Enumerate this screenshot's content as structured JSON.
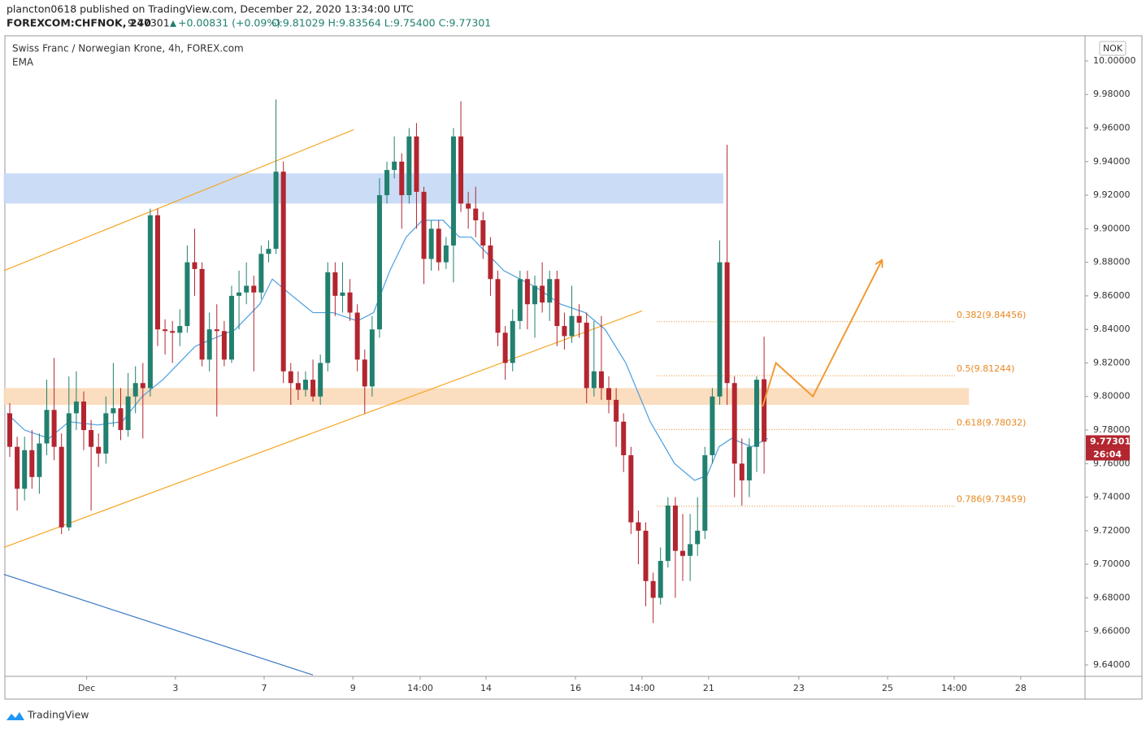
{
  "header": {
    "author_line": "plancton0618 published on TradingView.com, December 22, 2020 13:34:00 UTC",
    "symbol": "FOREXCOM:CHFNOK, 240",
    "last": "9.77301",
    "change": "+0.00831 (+0.09%)",
    "ohlc": "O:9.81029 H:9.83564 L:9.75400 C:9.77301"
  },
  "chart_data": {
    "type": "candlestick",
    "title": "Swiss Franc / Norwegian Krone, 4h, FOREX.com",
    "indicator_label": "EMA",
    "currency": "NOK",
    "up_color": "#22806f",
    "down_color": "#b3252f",
    "open": [
      9.79,
      9.77,
      9.745,
      9.768,
      9.752,
      9.772,
      9.792,
      9.77,
      9.722,
      9.79,
      9.797,
      9.78,
      9.77,
      9.766,
      9.79,
      9.793,
      9.78,
      9.8,
      9.808,
      9.805,
      9.908,
      9.84,
      9.839,
      9.838,
      9.842,
      9.88,
      9.876,
      9.822,
      9.84,
      9.839,
      9.822,
      9.86,
      9.862,
      9.866,
      9.862,
      9.885,
      9.888,
      9.934,
      9.815,
      9.808,
      9.804,
      9.81,
      9.8,
      9.82,
      9.874,
      9.86,
      9.862,
      9.85,
      9.822,
      9.806,
      9.84,
      9.92,
      9.935,
      9.94,
      9.92,
      9.955,
      9.922,
      9.882,
      9.9,
      9.88,
      9.89,
      9.955,
      9.915,
      9.912,
      9.905,
      9.89,
      9.87,
      9.838,
      9.82,
      9.845,
      9.87,
      9.855,
      9.866,
      9.856,
      9.87,
      9.842,
      9.836,
      9.848,
      9.844,
      9.805,
      9.815,
      9.805,
      9.798,
      9.785,
      9.765,
      9.725,
      9.72,
      9.69,
      9.68,
      9.702,
      9.735,
      9.708,
      9.705,
      9.712,
      9.72,
      9.765,
      9.8,
      9.88,
      9.808,
      9.76,
      9.75,
      9.77,
      9.81029
    ],
    "high": [
      9.796,
      9.776,
      9.776,
      9.78,
      9.778,
      9.81,
      9.823,
      9.778,
      9.812,
      9.815,
      9.803,
      9.786,
      9.778,
      9.8,
      9.82,
      9.805,
      9.814,
      9.818,
      9.82,
      9.912,
      9.912,
      9.846,
      9.845,
      9.852,
      9.89,
      9.9,
      9.88,
      9.85,
      9.855,
      9.845,
      9.866,
      9.875,
      9.88,
      9.872,
      9.89,
      9.893,
      9.977,
      9.94,
      9.82,
      9.815,
      9.815,
      9.822,
      9.825,
      9.88,
      9.88,
      9.88,
      9.87,
      9.855,
      9.828,
      9.848,
      9.93,
      9.94,
      9.955,
      9.945,
      9.96,
      9.963,
      9.925,
      9.905,
      9.905,
      9.895,
      9.96,
      9.976,
      9.922,
      9.925,
      9.91,
      9.895,
      9.875,
      9.842,
      9.852,
      9.875,
      9.875,
      9.872,
      9.88,
      9.875,
      9.875,
      9.85,
      9.866,
      9.855,
      9.85,
      9.845,
      9.848,
      9.812,
      9.805,
      9.79,
      9.77,
      9.732,
      9.725,
      9.695,
      9.71,
      9.74,
      9.74,
      9.73,
      9.73,
      9.74,
      9.77,
      9.805,
      9.893,
      9.95,
      9.812,
      9.775,
      9.775,
      9.812,
      9.83564
    ],
    "low": [
      9.764,
      9.732,
      9.738,
      9.745,
      9.742,
      9.765,
      9.762,
      9.718,
      9.72,
      9.78,
      9.768,
      9.732,
      9.758,
      9.76,
      9.782,
      9.774,
      9.776,
      9.79,
      9.775,
      9.8,
      9.83,
      9.825,
      9.82,
      9.83,
      9.838,
      9.86,
      9.818,
      9.815,
      9.788,
      9.818,
      9.82,
      9.84,
      9.855,
      9.815,
      9.858,
      9.88,
      9.885,
      9.808,
      9.795,
      9.798,
      9.8,
      9.797,
      9.795,
      9.815,
      9.848,
      9.85,
      9.845,
      9.815,
      9.79,
      9.8,
      9.835,
      9.915,
      9.93,
      9.9,
      9.915,
      9.9,
      9.867,
      9.875,
      9.875,
      9.876,
      9.868,
      9.91,
      9.9,
      9.895,
      9.882,
      9.86,
      9.83,
      9.81,
      9.815,
      9.84,
      9.84,
      9.835,
      9.85,
      9.845,
      9.83,
      9.828,
      9.832,
      9.835,
      9.796,
      9.8,
      9.798,
      9.79,
      9.77,
      9.755,
      9.718,
      9.7,
      9.675,
      9.665,
      9.676,
      9.698,
      9.68,
      9.69,
      9.69,
      9.705,
      9.715,
      9.76,
      9.795,
      9.795,
      9.74,
      9.735,
      9.74,
      9.755,
      9.754
    ],
    "close": [
      9.77,
      9.745,
      9.768,
      9.752,
      9.772,
      9.792,
      9.77,
      9.722,
      9.79,
      9.797,
      9.78,
      9.77,
      9.766,
      9.79,
      9.793,
      9.78,
      9.8,
      9.808,
      9.805,
      9.908,
      9.84,
      9.839,
      9.838,
      9.842,
      9.88,
      9.876,
      9.822,
      9.84,
      9.839,
      9.822,
      9.86,
      9.862,
      9.866,
      9.862,
      9.885,
      9.888,
      9.934,
      9.815,
      9.808,
      9.804,
      9.81,
      9.8,
      9.82,
      9.874,
      9.86,
      9.862,
      9.85,
      9.822,
      9.806,
      9.84,
      9.92,
      9.935,
      9.94,
      9.92,
      9.955,
      9.922,
      9.882,
      9.9,
      9.88,
      9.89,
      9.955,
      9.915,
      9.912,
      9.905,
      9.89,
      9.87,
      9.838,
      9.82,
      9.845,
      9.87,
      9.855,
      9.866,
      9.856,
      9.87,
      9.842,
      9.836,
      9.848,
      9.844,
      9.805,
      9.815,
      9.805,
      9.798,
      9.785,
      9.765,
      9.725,
      9.72,
      9.69,
      9.68,
      9.702,
      9.735,
      9.708,
      9.705,
      9.712,
      9.72,
      9.765,
      9.8,
      9.88,
      9.808,
      9.76,
      9.75,
      9.77,
      9.81,
      9.77301
    ],
    "ema": {
      "color": "#4a9fe0",
      "x": [
        -0.4,
        2,
        5.3,
        8,
        11.9,
        15.2,
        17.9,
        20.7,
        22.9,
        25.1,
        27.8,
        30.5,
        33.8,
        35.5,
        38.2,
        41,
        43.7,
        47,
        49.2,
        51.4,
        53.6,
        55.8,
        58.6,
        60.8,
        62.4,
        64.6,
        66.8,
        69,
        71.2,
        74.5,
        77.8,
        80.5,
        83.3,
        86.6,
        89.9,
        92.6,
        94.3,
        95.9,
        97.6,
        100.3,
        102.5
      ],
      "values": [
        9.79,
        9.78,
        9.775,
        9.785,
        9.783,
        9.785,
        9.8,
        9.81,
        9.82,
        9.83,
        9.835,
        9.84,
        9.855,
        9.87,
        9.86,
        9.85,
        9.85,
        9.845,
        9.85,
        9.875,
        9.895,
        9.905,
        9.905,
        9.895,
        9.895,
        9.885,
        9.875,
        9.87,
        9.865,
        9.855,
        9.85,
        9.84,
        9.82,
        9.785,
        9.76,
        9.75,
        9.753,
        9.77,
        9.775,
        9.77,
        9.775
      ]
    },
    "xlim": [
      -0.66,
      145.4
    ],
    "ylim": [
      9.6332,
      10.015
    ],
    "xticks": [
      {
        "value": 10.4,
        "label": "Dec"
      },
      {
        "value": 22.4,
        "label": "3"
      },
      {
        "value": 34.4,
        "label": "7"
      },
      {
        "value": 46.4,
        "label": "9"
      },
      {
        "value": 55.5,
        "label": "14:00"
      },
      {
        "value": 64.4,
        "label": "14"
      },
      {
        "value": 76.5,
        "label": "16"
      },
      {
        "value": 85.5,
        "label": "14:00"
      },
      {
        "value": 94.5,
        "label": "21"
      },
      {
        "value": 106.7,
        "label": "23"
      },
      {
        "value": 118.7,
        "label": "25"
      },
      {
        "value": 127.7,
        "label": "14:00"
      },
      {
        "value": 136.7,
        "label": "28"
      }
    ],
    "yticks": [
      {
        "value": 10,
        "label": "10.00000"
      },
      {
        "value": 9.98,
        "label": "9.98000"
      },
      {
        "value": 9.96,
        "label": "9.96000"
      },
      {
        "value": 9.94,
        "label": "9.94000"
      },
      {
        "value": 9.92,
        "label": "9.92000"
      },
      {
        "value": 9.9,
        "label": "9.90000"
      },
      {
        "value": 9.88,
        "label": "9.88000"
      },
      {
        "value": 9.86,
        "label": "9.86000"
      },
      {
        "value": 9.84,
        "label": "9.84000"
      },
      {
        "value": 9.82,
        "label": "9.82000"
      },
      {
        "value": 9.8,
        "label": "9.80000"
      },
      {
        "value": 9.78,
        "label": "9.78000"
      },
      {
        "value": 9.76,
        "label": "9.76000"
      },
      {
        "value": 9.74,
        "label": "9.74000"
      },
      {
        "value": 9.72,
        "label": "9.72000"
      },
      {
        "value": 9.7,
        "label": "9.70000"
      },
      {
        "value": 9.68,
        "label": "9.68000"
      },
      {
        "value": 9.66,
        "label": "9.66000"
      },
      {
        "value": 9.64,
        "label": "9.64000"
      }
    ],
    "zones": [
      {
        "from": 9.915,
        "to": 9.933,
        "x_from": -0.8,
        "x_to": 96.5,
        "color": "#c5d8f5"
      },
      {
        "from": 9.795,
        "to": 9.805,
        "x_from": -0.8,
        "x_to": 129.7,
        "color": "#fbd9b8"
      }
    ],
    "trend_lines": [
      {
        "x": [
          -0.8,
          46.5
        ],
        "y": [
          9.875,
          9.959
        ],
        "color": "#f5a623"
      },
      {
        "x": [
          -0.8,
          85.5
        ],
        "y": [
          9.71,
          9.851
        ],
        "color": "#f5a623"
      },
      {
        "x": [
          -0.8,
          41
        ],
        "y": [
          9.694,
          9.634
        ],
        "color": "#3b78c4"
      }
    ],
    "fib_x": [
      87.5,
      127.8
    ],
    "fib_color": "#e8871e",
    "fib_levels": [
      {
        "value": 9.84456,
        "label": "0.382(9.84456)"
      },
      {
        "value": 9.81244,
        "label": "0.5(9.81244)"
      },
      {
        "value": 9.78032,
        "label": "0.618(9.78032)"
      },
      {
        "value": 9.73459,
        "label": "0.786(9.73459)"
      }
    ],
    "projection": {
      "x": [
        101.8,
        103.6,
        108.6,
        117.9
      ],
      "y": [
        9.794,
        9.82,
        9.8,
        9.881
      ],
      "color": "#f09a36"
    },
    "last_price": {
      "value": 9.77301,
      "label": "9.77301"
    },
    "countdown": "26:04"
  },
  "footer": {
    "brand": "TradingView"
  }
}
